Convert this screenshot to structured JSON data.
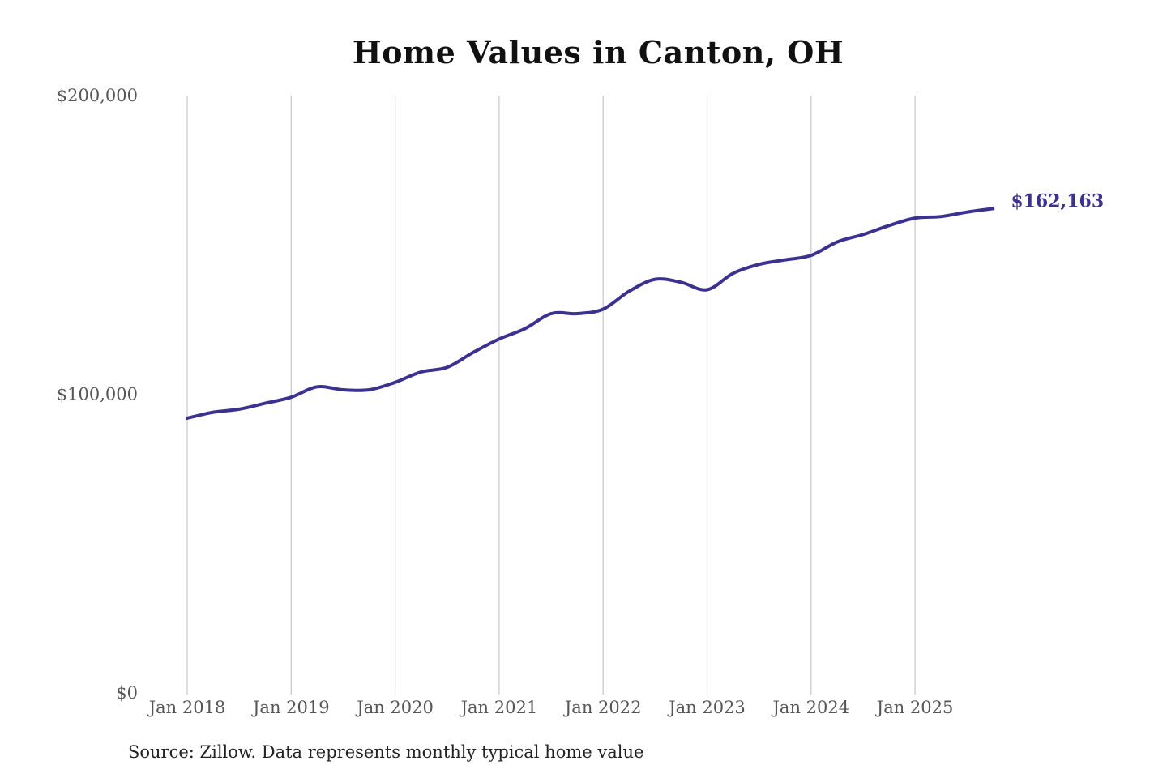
{
  "colors": {
    "line": "#3a3191",
    "grid": "#c7c7c7",
    "axis_text": "#555555",
    "background": "#ffffff"
  },
  "chart_data": {
    "type": "line",
    "title": "Home Values in Canton, OH",
    "xlabel": "",
    "ylabel": "",
    "ylim": [
      0,
      200000
    ],
    "xlim": [
      "2018-01",
      "2025-12"
    ],
    "y_ticks": [
      0,
      100000,
      200000
    ],
    "y_tick_labels": [
      "$0",
      "$100,000",
      "$200,000"
    ],
    "x_ticks": [
      "2018-01",
      "2019-01",
      "2020-01",
      "2021-01",
      "2022-01",
      "2023-01",
      "2024-01",
      "2025-01"
    ],
    "x_tick_labels": [
      "Jan 2018",
      "Jan 2019",
      "Jan 2020",
      "Jan 2021",
      "Jan 2022",
      "Jan 2023",
      "Jan 2024",
      "Jan 2025"
    ],
    "grid": "vertical",
    "series": [
      {
        "values": [
          {
            "x": "2018-01",
            "y": 92000
          },
          {
            "x": "2018-04",
            "y": 94000
          },
          {
            "x": "2018-07",
            "y": 95000
          },
          {
            "x": "2018-10",
            "y": 97000
          },
          {
            "x": "2019-01",
            "y": 99000
          },
          {
            "x": "2019-04",
            "y": 102500
          },
          {
            "x": "2019-07",
            "y": 101500
          },
          {
            "x": "2019-10",
            "y": 101500
          },
          {
            "x": "2020-01",
            "y": 104000
          },
          {
            "x": "2020-04",
            "y": 107500
          },
          {
            "x": "2020-07",
            "y": 109000
          },
          {
            "x": "2020-10",
            "y": 114000
          },
          {
            "x": "2021-01",
            "y": 118500
          },
          {
            "x": "2021-04",
            "y": 122000
          },
          {
            "x": "2021-07",
            "y": 127000
          },
          {
            "x": "2021-10",
            "y": 127000
          },
          {
            "x": "2022-01",
            "y": 128500
          },
          {
            "x": "2022-04",
            "y": 134500
          },
          {
            "x": "2022-07",
            "y": 138500
          },
          {
            "x": "2022-10",
            "y": 137500
          },
          {
            "x": "2023-01",
            "y": 135000
          },
          {
            "x": "2023-04",
            "y": 140500
          },
          {
            "x": "2023-07",
            "y": 143500
          },
          {
            "x": "2023-10",
            "y": 145000
          },
          {
            "x": "2024-01",
            "y": 146500
          },
          {
            "x": "2024-04",
            "y": 151000
          },
          {
            "x": "2024-07",
            "y": 153500
          },
          {
            "x": "2024-10",
            "y": 156500
          },
          {
            "x": "2025-01",
            "y": 159000
          },
          {
            "x": "2025-04",
            "y": 159500
          },
          {
            "x": "2025-07",
            "y": 161000
          },
          {
            "x": "2025-10",
            "y": 162163
          }
        ]
      }
    ],
    "end_label": "$162,163",
    "source": "Source: Zillow. Data represents monthly typical home value"
  }
}
